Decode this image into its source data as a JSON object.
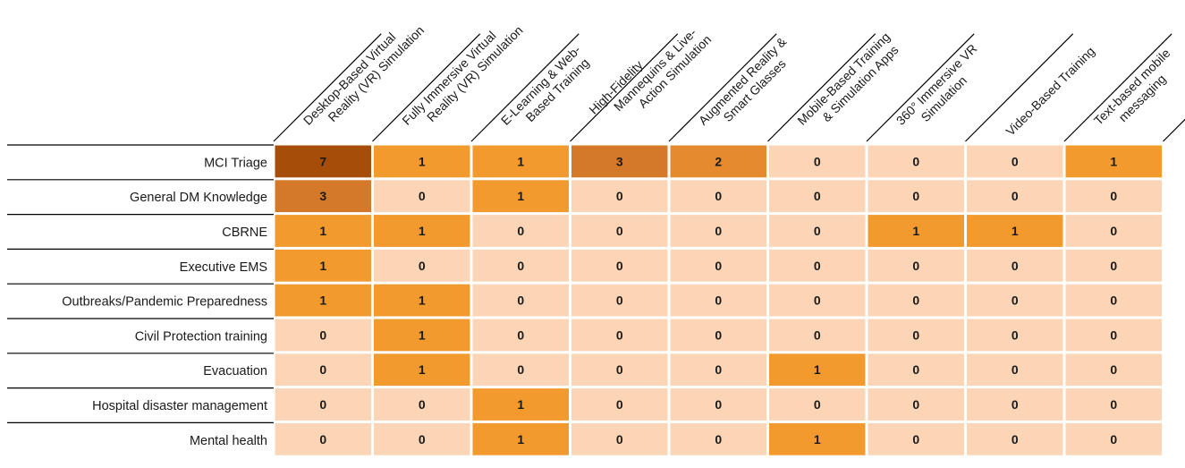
{
  "chart_data": {
    "type": "heatmap",
    "columns": [
      [
        "Desktop-Based Virtual",
        "Reality (VR) Simulation"
      ],
      [
        "Fully Immersive Virtual",
        "Reality (VR) Simulation"
      ],
      [
        "E-Learning & Web-",
        "Based Training"
      ],
      [
        "High-Fidelity",
        "Mannequins & Live-",
        "Action Simulation"
      ],
      [
        "Augmented Reality &",
        "Smart Glasses"
      ],
      [
        "Mobile-Based Training",
        "& Simulation Apps"
      ],
      [
        "360° Immersive VR",
        "Simulation"
      ],
      [
        "Video-Based Training"
      ],
      [
        "Text-based mobile",
        "messaging"
      ]
    ],
    "rows": [
      "MCI Triage",
      "General DM Knowledge",
      "CBRNE",
      "Executive EMS",
      "Outbreaks/Pandemic Preparedness",
      "Civil Protection training",
      "Evacuation",
      "Hospital disaster management",
      "Mental health"
    ],
    "values": [
      [
        7,
        1,
        1,
        3,
        2,
        0,
        0,
        0,
        1
      ],
      [
        3,
        0,
        1,
        0,
        0,
        0,
        0,
        0,
        0
      ],
      [
        1,
        1,
        0,
        0,
        0,
        0,
        1,
        1,
        0
      ],
      [
        1,
        0,
        0,
        0,
        0,
        0,
        0,
        0,
        0
      ],
      [
        1,
        1,
        0,
        0,
        0,
        0,
        0,
        0,
        0
      ],
      [
        0,
        1,
        0,
        0,
        0,
        0,
        0,
        0,
        0
      ],
      [
        0,
        1,
        0,
        0,
        0,
        1,
        0,
        0,
        0
      ],
      [
        0,
        0,
        1,
        0,
        0,
        0,
        0,
        0,
        0
      ],
      [
        0,
        0,
        1,
        0,
        0,
        1,
        0,
        0,
        0
      ]
    ],
    "colors": {
      "0": "#fbd5b5",
      "1": "#f29a2e",
      "2": "#e68a30",
      "3": "#d4782a",
      "7": "#a74d0a"
    },
    "line_color": "#000000"
  }
}
